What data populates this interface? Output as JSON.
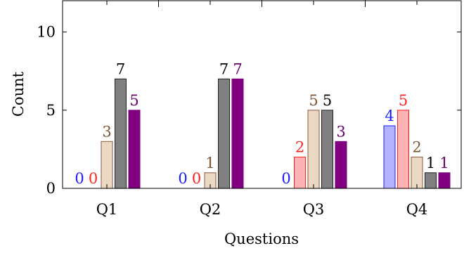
{
  "chart_data": {
    "type": "bar",
    "xlabel": "Questions",
    "ylabel": "Count",
    "ylim": [
      0,
      12
    ],
    "yticks": [
      "0",
      "5",
      "10"
    ],
    "categories": [
      "Q1",
      "Q2",
      "Q3",
      "Q4"
    ],
    "grid": false,
    "legend": "none",
    "series": [
      {
        "values": [
          0,
          0,
          0,
          4
        ],
        "color": "#1a1aff",
        "fill": "#b3b3ff",
        "label_color": "#1a1aff"
      },
      {
        "values": [
          0,
          0,
          2,
          5
        ],
        "color": "#ff2020",
        "fill": "#ffb3b3",
        "label_color": "#ff2020"
      },
      {
        "values": [
          3,
          1,
          5,
          2
        ],
        "color": "#8b5a3c",
        "fill": "#ead8c4",
        "label_color": "#7a5536"
      },
      {
        "values": [
          7,
          7,
          5,
          1
        ],
        "color": "#202020",
        "fill": "#808080",
        "label_color": "#000000"
      },
      {
        "values": [
          5,
          7,
          3,
          1
        ],
        "color": "#7a007a",
        "fill": "#800080",
        "label_color": "#6a006a"
      }
    ]
  }
}
